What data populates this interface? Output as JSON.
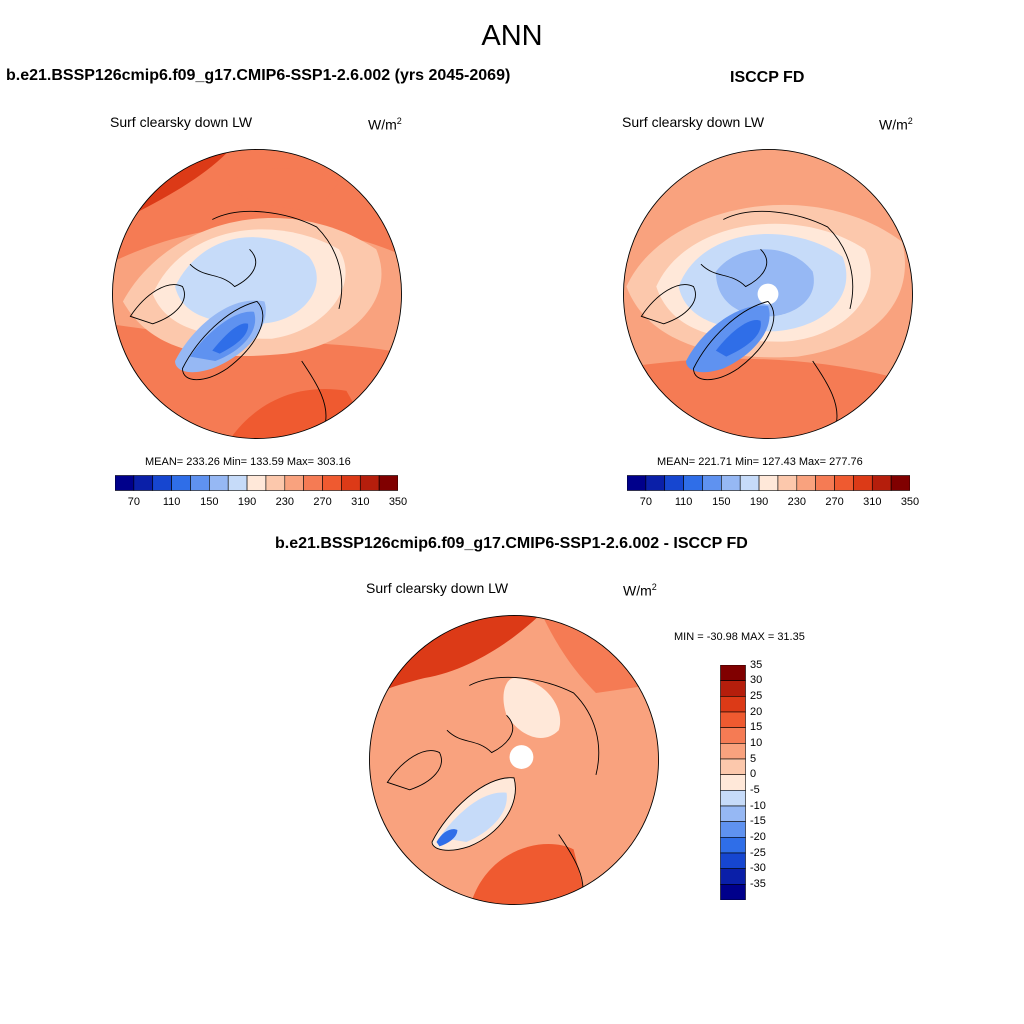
{
  "figure": {
    "season": "ANN"
  },
  "panels": {
    "test": {
      "title": "b.e21.BSSP126cmip6.f09_g17.CMIP6-SSP1-2.6.002 (yrs 2045-2069)",
      "variable": "Surf clearsky down LW",
      "units_base": "W/m",
      "units_exp": "2",
      "stats": "MEAN= 233.26  Min= 133.59  Max= 303.16"
    },
    "obs": {
      "title": "ISCCP FD",
      "variable": "Surf clearsky down LW",
      "units_base": "W/m",
      "units_exp": "2",
      "stats": "MEAN= 221.71  Min= 127.43  Max= 277.76"
    },
    "diff": {
      "title": "b.e21.BSSP126cmip6.f09_g17.CMIP6-SSP1-2.6.002 - ISCCP FD",
      "variable": "Surf clearsky down LW",
      "units_base": "W/m",
      "units_exp": "2",
      "stats": "MIN = -30.98 MAX =  31.35"
    }
  },
  "colorbars": {
    "field": {
      "colors": [
        "#00008b",
        "#0a1fa8",
        "#1646d0",
        "#2f6ee8",
        "#5f92f0",
        "#96b8f4",
        "#c6dbf9",
        "#ffe8d9",
        "#fcc8ac",
        "#f9a27e",
        "#f57b54",
        "#ef5a30",
        "#dc3a17",
        "#b51e0c",
        "#800000"
      ],
      "tick_labels": [
        "70",
        "110",
        "150",
        "190",
        "230",
        "270",
        "310",
        "350"
      ]
    },
    "diff": {
      "colors": [
        "#00008b",
        "#0a1fa8",
        "#1646d0",
        "#2f6ee8",
        "#5f92f0",
        "#96b8f4",
        "#c6dbf9",
        "#ffe8d9",
        "#fcc8ac",
        "#f9a27e",
        "#f57b54",
        "#ef5a30",
        "#dc3a17",
        "#b51e0c",
        "#800000"
      ],
      "tick_labels": [
        "35",
        "30",
        "25",
        "20",
        "15",
        "10",
        "5",
        "0",
        "-5",
        "-10",
        "-15",
        "-20",
        "-25",
        "-30",
        "-35"
      ]
    }
  }
}
